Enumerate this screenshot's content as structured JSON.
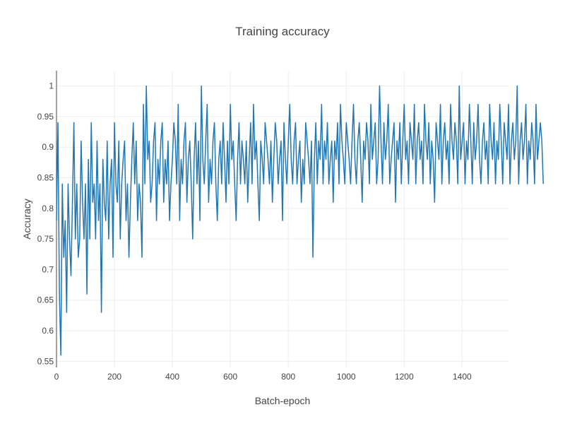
{
  "chart_data": {
    "type": "line",
    "title": "Training accuracy",
    "xlabel": "Batch-epoch",
    "ylabel": "Accuracy",
    "xlim": [
      0,
      1560
    ],
    "ylim": [
      0.54,
      1.025
    ],
    "xticks": [
      0,
      200,
      400,
      600,
      800,
      1000,
      1200,
      1400
    ],
    "yticks": [
      0.55,
      0.6,
      0.65,
      0.7,
      0.75,
      0.8,
      0.85,
      0.9,
      0.95,
      1
    ],
    "grid": true,
    "legend": "none",
    "series": [
      {
        "color": "#1f77b4",
        "sampling_interval": 5,
        "values": [
          0.78,
          0.94,
          0.66,
          0.56,
          0.84,
          0.72,
          0.78,
          0.63,
          0.84,
          0.75,
          0.69,
          0.81,
          0.94,
          0.75,
          0.84,
          0.72,
          0.75,
          0.91,
          0.81,
          0.75,
          0.84,
          0.66,
          0.88,
          0.75,
          0.94,
          0.81,
          0.84,
          0.75,
          0.91,
          0.78,
          0.84,
          0.63,
          0.88,
          0.81,
          0.78,
          0.91,
          0.75,
          0.84,
          0.88,
          0.72,
          0.94,
          0.84,
          0.81,
          0.91,
          0.75,
          0.84,
          0.88,
          0.91,
          0.78,
          0.84,
          0.72,
          0.81,
          0.88,
          0.94,
          0.84,
          0.91,
          0.78,
          0.84,
          0.81,
          0.72,
          0.97,
          0.84,
          1.0,
          0.88,
          0.91,
          0.81,
          0.84,
          0.91,
          0.94,
          0.78,
          0.88,
          0.84,
          0.91,
          0.94,
          0.81,
          0.88,
          0.84,
          0.91,
          0.78,
          0.84,
          0.88,
          0.94,
          0.91,
          0.84,
          0.97,
          0.78,
          0.88,
          0.84,
          0.91,
          0.94,
          0.81,
          0.88,
          0.91,
          0.84,
          0.75,
          0.88,
          0.94,
          0.84,
          0.91,
          0.78,
          1.0,
          0.88,
          0.84,
          0.91,
          0.97,
          0.81,
          0.88,
          0.84,
          0.91,
          0.94,
          0.84,
          0.78,
          0.88,
          0.91,
          0.84,
          0.94,
          0.88,
          0.81,
          0.91,
          0.84,
          0.97,
          0.88,
          0.91,
          0.84,
          0.78,
          0.88,
          0.94,
          0.84,
          0.91,
          0.88,
          0.84,
          0.91,
          0.81,
          0.88,
          0.94,
          0.84,
          0.97,
          0.88,
          0.91,
          0.84,
          0.78,
          0.91,
          0.88,
          0.84,
          0.94,
          0.91,
          0.88,
          0.84,
          0.91,
          0.81,
          0.88,
          0.94,
          0.91,
          0.84,
          0.88,
          0.91,
          0.78,
          0.94,
          0.88,
          0.84,
          0.91,
          0.97,
          0.88,
          0.84,
          0.91,
          0.94,
          0.84,
          0.88,
          0.91,
          0.81,
          0.88,
          0.84,
          0.94,
          0.91,
          0.88,
          0.84,
          0.91,
          0.72,
          0.88,
          0.94,
          0.84,
          0.91,
          0.88,
          0.97,
          0.84,
          0.91,
          0.88,
          0.94,
          0.84,
          0.88,
          0.91,
          0.81,
          0.91,
          0.88,
          0.94,
          0.84,
          0.97,
          0.91,
          0.88,
          0.84,
          0.94,
          0.91,
          0.88,
          0.84,
          0.91,
          0.97,
          0.88,
          0.84,
          0.91,
          0.94,
          0.88,
          0.81,
          0.91,
          0.88,
          0.94,
          0.91,
          0.84,
          0.97,
          0.88,
          0.91,
          0.94,
          0.84,
          0.88,
          1.0,
          0.91,
          0.84,
          0.94,
          0.88,
          0.91,
          0.97,
          0.84,
          0.88,
          0.91,
          0.94,
          0.81,
          0.91,
          0.88,
          0.94,
          0.84,
          0.91,
          0.97,
          0.88,
          0.91,
          0.84,
          0.94,
          0.91,
          0.88,
          0.97,
          0.84,
          0.91,
          0.94,
          0.88,
          0.91,
          0.84,
          0.97,
          0.91,
          0.88,
          0.94,
          0.84,
          0.91,
          0.88,
          0.81,
          0.94,
          0.91,
          0.88,
          0.97,
          0.84,
          0.91,
          0.94,
          0.88,
          0.91,
          0.84,
          0.97,
          0.91,
          0.88,
          0.94,
          0.91,
          0.84,
          1.0,
          0.88,
          0.91,
          0.94,
          0.84,
          0.91,
          0.88,
          0.97,
          0.91,
          0.84,
          0.94,
          0.88,
          0.91,
          0.97,
          0.88,
          0.84,
          0.91,
          0.94,
          0.88,
          0.91,
          0.84,
          0.97,
          0.91,
          0.88,
          0.94,
          0.84,
          0.91,
          0.88,
          0.97,
          0.91,
          0.84,
          0.94,
          0.91,
          0.88,
          0.97,
          0.84,
          0.91,
          0.94,
          0.88,
          0.91,
          1.0,
          0.84,
          0.91,
          0.94,
          0.88,
          0.91,
          0.97,
          0.84,
          0.91,
          0.88,
          0.94,
          0.91,
          0.84,
          0.97,
          0.88,
          0.91,
          0.94,
          0.91,
          0.84
        ]
      }
    ]
  }
}
